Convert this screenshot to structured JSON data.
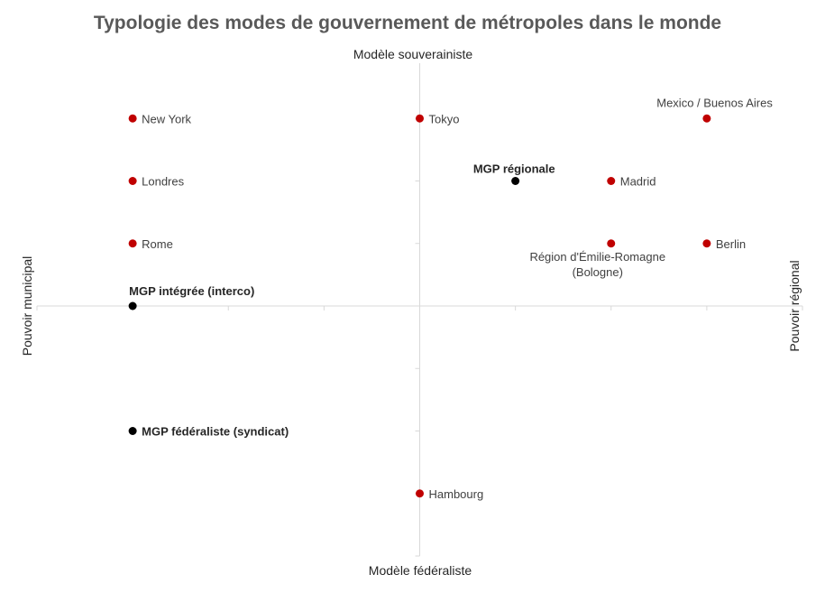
{
  "chart_data": {
    "type": "scatter",
    "title": "Typologie des modes de gouvernement de métropoles dans le monde",
    "axis_labels": {
      "top": "Modèle souverainiste",
      "bottom": "Modèle fédéraliste",
      "left": "Pouvoir municipal",
      "right": "Pouvoir régional"
    },
    "xlim": [
      -4,
      4
    ],
    "ylim": [
      -4,
      4
    ],
    "grid": false,
    "colors": {
      "city": "#c00000",
      "mgp": "#000000"
    },
    "points": [
      {
        "label": "New York",
        "x": -3,
        "y": 3,
        "group": "city",
        "label_pos": "right"
      },
      {
        "label": "Tokyo",
        "x": 0,
        "y": 3,
        "group": "city",
        "label_pos": "right"
      },
      {
        "label": "Mexico / Buenos Aires",
        "x": 3,
        "y": 3,
        "group": "city",
        "label_pos": "above-left"
      },
      {
        "label": "Londres",
        "x": -3,
        "y": 2,
        "group": "city",
        "label_pos": "right"
      },
      {
        "label": "MGP régionale",
        "x": 1,
        "y": 2,
        "group": "mgp",
        "label_pos": "above-left",
        "bold": true
      },
      {
        "label": "Madrid",
        "x": 2,
        "y": 2,
        "group": "city",
        "label_pos": "right"
      },
      {
        "label": "Rome",
        "x": -3,
        "y": 1,
        "group": "city",
        "label_pos": "right"
      },
      {
        "label": "Région d'Émilie-Romagne (Bologne)",
        "lines": [
          "Région d'Émilie-Romagne",
          "(Bologne)"
        ],
        "x": 2,
        "y": 1,
        "group": "city",
        "label_pos": "below"
      },
      {
        "label": "Berlin",
        "x": 3,
        "y": 1,
        "group": "city",
        "label_pos": "right"
      },
      {
        "label": "MGP intégrée (interco)",
        "x": -3,
        "y": 0,
        "group": "mgp",
        "label_pos": "above",
        "bold": true
      },
      {
        "label": "MGP fédéraliste (syndicat)",
        "x": -3,
        "y": -2,
        "group": "mgp",
        "label_pos": "right",
        "bold": true
      },
      {
        "label": "Hambourg",
        "x": 0,
        "y": -3,
        "group": "city",
        "label_pos": "right"
      }
    ]
  }
}
